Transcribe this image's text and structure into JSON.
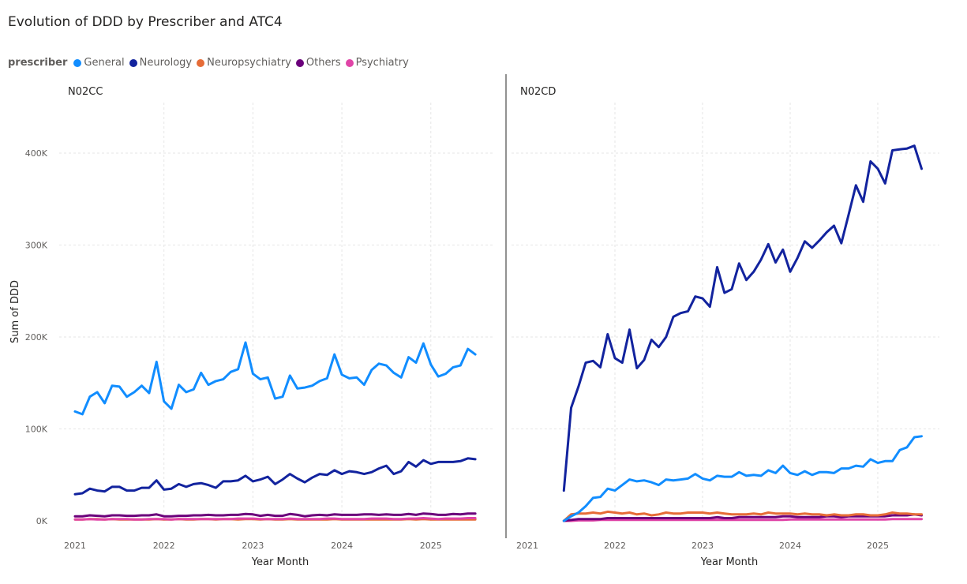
{
  "title": "Evolution of DDD by Prescriber and ATC4",
  "legend": {
    "title": "prescriber",
    "items": [
      {
        "label": "General",
        "color": "#118DFF"
      },
      {
        "label": "Neurology",
        "color": "#12239E"
      },
      {
        "label": "Neuropsychiatry",
        "color": "#E66C37"
      },
      {
        "label": "Others",
        "color": "#6B007B"
      },
      {
        "label": "Psychiatry",
        "color": "#E044A7"
      }
    ]
  },
  "chart_data": [
    {
      "type": "line",
      "title": "N02CC",
      "xlabel": "Year Month",
      "ylabel": "Sum of DDD",
      "x_ticks": [
        "2021",
        "2022",
        "2023",
        "2024",
        "2025"
      ],
      "y_ticks": [
        "0K",
        "100K",
        "200K",
        "300K",
        "400K"
      ],
      "ylim": [
        0,
        450000
      ],
      "xlim": [
        2021.0,
        2025.67
      ],
      "grid": true,
      "series": [
        {
          "name": "General",
          "color": "#118DFF",
          "x_start": 2021.0,
          "values": [
            119000,
            116000,
            135000,
            140000,
            128000,
            147000,
            146000,
            135000,
            140000,
            147000,
            139000,
            173000,
            130000,
            122000,
            148000,
            140000,
            143000,
            161000,
            148000,
            152000,
            154000,
            162000,
            165000,
            194000,
            160000,
            154000,
            156000,
            133000,
            135000,
            158000,
            144000,
            145000,
            147000,
            152000,
            155000,
            181000,
            159000,
            155000,
            156000,
            148000,
            164000,
            171000,
            169000,
            161000,
            156000,
            178000,
            172000,
            193000,
            170000,
            157000,
            160000,
            167000,
            169000,
            187000,
            181000
          ]
        },
        {
          "name": "Neurology",
          "color": "#12239E",
          "x_start": 2021.0,
          "values": [
            29000,
            30000,
            35000,
            33000,
            32000,
            37000,
            37000,
            33000,
            33000,
            36000,
            36000,
            44000,
            34000,
            35000,
            40000,
            37000,
            40000,
            41000,
            39000,
            36000,
            43000,
            43000,
            44000,
            49000,
            43000,
            45000,
            48000,
            40000,
            45000,
            51000,
            46000,
            42000,
            47000,
            51000,
            50000,
            55000,
            51000,
            54000,
            53000,
            51000,
            53000,
            57000,
            60000,
            51000,
            54000,
            64000,
            59000,
            66000,
            62000,
            64000,
            64000,
            64000,
            65000,
            68000,
            67000
          ]
        },
        {
          "name": "Neuropsychiatry",
          "color": "#E66C37",
          "x_start": 2021.0,
          "values": [
            1500,
            1500,
            2000,
            2000,
            1500,
            2000,
            1500,
            1500,
            1500,
            1500,
            1500,
            2000,
            1500,
            1500,
            2000,
            1500,
            1500,
            2000,
            2000,
            1500,
            2000,
            2000,
            1500,
            2000,
            2000,
            1500,
            2000,
            1500,
            1500,
            2000,
            1500,
            1500,
            1500,
            1500,
            1500,
            2000,
            1500,
            1500,
            1500,
            1500,
            1500,
            1500,
            1500,
            1500,
            1500,
            2000,
            1500,
            2000,
            1500,
            1500,
            1500,
            1500,
            1500,
            1500,
            1500
          ]
        },
        {
          "name": "Others",
          "color": "#6B007B",
          "x_start": 2021.0,
          "values": [
            5000,
            5000,
            6000,
            5500,
            5000,
            6000,
            6000,
            5500,
            5500,
            6000,
            6000,
            7000,
            5000,
            5000,
            5500,
            5500,
            6000,
            6000,
            6500,
            6000,
            6000,
            6500,
            6500,
            7500,
            7000,
            5500,
            6500,
            5500,
            5500,
            7500,
            6500,
            5000,
            6000,
            6500,
            6000,
            7000,
            6500,
            6500,
            6500,
            7000,
            7000,
            6500,
            7000,
            6500,
            6500,
            7500,
            6500,
            8000,
            7500,
            6500,
            6500,
            7500,
            7000,
            8000,
            8000
          ]
        },
        {
          "name": "Psychiatry",
          "color": "#E044A7",
          "x_start": 2021.0,
          "values": [
            1500,
            1500,
            2000,
            1500,
            1500,
            2000,
            2000,
            2000,
            1500,
            1500,
            2000,
            2000,
            2000,
            1500,
            2000,
            2000,
            2000,
            2000,
            2000,
            2000,
            2000,
            2000,
            2500,
            2500,
            2500,
            2000,
            2000,
            2000,
            2000,
            2500,
            2000,
            2000,
            2000,
            2000,
            2500,
            2500,
            2000,
            2000,
            2000,
            2000,
            2500,
            2500,
            2500,
            2000,
            2000,
            2500,
            2500,
            3000,
            2500,
            2000,
            2500,
            2500,
            2500,
            3000,
            3000
          ]
        }
      ]
    },
    {
      "type": "line",
      "title": "N02CD",
      "xlabel": "Year Month",
      "ylabel": "",
      "x_ticks": [
        "2021",
        "2022",
        "2023",
        "2024",
        "2025"
      ],
      "ylim": [
        0,
        450000
      ],
      "xlim": [
        2021.0,
        2025.67
      ],
      "grid": true,
      "series": [
        {
          "name": "Neurology",
          "color": "#12239E",
          "x_start": 2021.417,
          "values": [
            33000,
            123000,
            146000,
            172000,
            174000,
            167000,
            203000,
            177000,
            172000,
            208000,
            166000,
            175000,
            197000,
            189000,
            200000,
            222000,
            226000,
            228000,
            244000,
            242000,
            233000,
            276000,
            248000,
            252000,
            280000,
            262000,
            271000,
            284000,
            301000,
            281000,
            295000,
            271000,
            286000,
            304000,
            297000,
            305000,
            314000,
            321000,
            302000,
            333000,
            365000,
            347000,
            391000,
            383000,
            367000,
            403000,
            404000,
            405000,
            408000,
            383000
          ]
        },
        {
          "name": "General",
          "color": "#118DFF",
          "x_start": 2021.417,
          "values": [
            0,
            5000,
            9000,
            16000,
            25000,
            26000,
            35000,
            33000,
            39000,
            45000,
            43000,
            44000,
            42000,
            39000,
            45000,
            44000,
            45000,
            46000,
            51000,
            46000,
            44000,
            49000,
            48000,
            48000,
            53000,
            49000,
            50000,
            49000,
            55000,
            52000,
            60000,
            52000,
            50000,
            54000,
            50000,
            53000,
            53000,
            52000,
            57000,
            57000,
            60000,
            59000,
            67000,
            63000,
            65000,
            65000,
            77000,
            80000,
            91000,
            92000
          ]
        },
        {
          "name": "Neuropsychiatry",
          "color": "#E66C37",
          "x_start": 2021.417,
          "values": [
            0,
            7000,
            8000,
            8000,
            9000,
            8000,
            10000,
            9000,
            8000,
            9000,
            7000,
            8000,
            6000,
            7000,
            9000,
            8000,
            8000,
            9000,
            9000,
            9000,
            8000,
            9000,
            8000,
            7000,
            7000,
            7000,
            8000,
            7000,
            9000,
            8000,
            8000,
            8000,
            7000,
            8000,
            7000,
            7000,
            6000,
            7000,
            6000,
            6000,
            7000,
            7000,
            6000,
            6000,
            7000,
            9000,
            8000,
            8000,
            7000,
            7000
          ]
        },
        {
          "name": "Others",
          "color": "#6B007B",
          "x_start": 2021.417,
          "values": [
            0,
            1000,
            2000,
            2000,
            2000,
            2000,
            3000,
            3000,
            3000,
            3000,
            3000,
            3000,
            3000,
            3000,
            3000,
            3000,
            3000,
            3000,
            3000,
            3000,
            3000,
            4000,
            3000,
            3000,
            4000,
            4000,
            4000,
            4000,
            4000,
            4000,
            5000,
            5000,
            4000,
            4000,
            4000,
            4000,
            5000,
            5000,
            4000,
            5000,
            5000,
            5000,
            5000,
            5000,
            5000,
            6000,
            6000,
            6000,
            7000,
            6000
          ]
        },
        {
          "name": "Psychiatry",
          "color": "#E044A7",
          "x_start": 2021.417,
          "values": [
            0,
            0,
            500,
            500,
            500,
            1000,
            1000,
            1000,
            1000,
            1000,
            1000,
            1000,
            1000,
            1000,
            1000,
            1000,
            1000,
            1000,
            1000,
            1000,
            1000,
            1000,
            1000,
            1000,
            1000,
            1000,
            1000,
            1000,
            1000,
            1000,
            1000,
            1500,
            1500,
            1500,
            1500,
            1500,
            1500,
            1500,
            1500,
            1500,
            1500,
            1500,
            1500,
            1500,
            1500,
            2000,
            2000,
            2000,
            2000,
            2000
          ]
        }
      ]
    }
  ]
}
